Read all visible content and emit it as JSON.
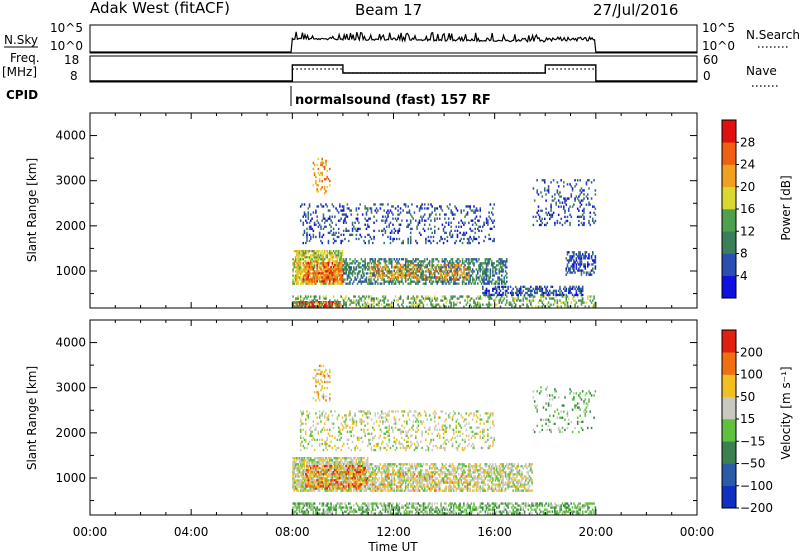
{
  "header": {
    "site": "Adak West (fitACF)",
    "beam": "Beam 17",
    "date": "27/Jul/2016"
  },
  "panels": {
    "nsky": {
      "label": "N.Sky",
      "ticks_left": [
        "10^5",
        "10^0"
      ],
      "ticks_right": [
        "10^5",
        "10^0"
      ],
      "right_label": "N.Search"
    },
    "freq": {
      "label_top": "Freq.",
      "label_bottom": "[MHz]",
      "ticks_left": [
        "18",
        "8"
      ],
      "ticks_right": [
        "60",
        "0"
      ],
      "right_label": "Nave"
    },
    "cpid": {
      "label": "CPID",
      "text": "normalsound (fast) 157 RF"
    }
  },
  "chart_data": [
    {
      "type": "heatmap",
      "name": "power",
      "ylabel": "Slant Range [km]",
      "xlabel": "",
      "x_range_hours": [
        0,
        24
      ],
      "ylim": [
        180,
        4500
      ],
      "yticks": [
        "1000",
        "2000",
        "3000",
        "4000"
      ],
      "colorbar": {
        "label": "Power [dB]",
        "ticks": [
          "4",
          "8",
          "12",
          "16",
          "20",
          "24",
          "28"
        ],
        "colors": [
          "#1010e0",
          "#2a4fb0",
          "#3a7e5a",
          "#4fa04c",
          "#d8d830",
          "#f0a020",
          "#f06010",
          "#e01010"
        ]
      },
      "regions": [
        {
          "t0": 8.0,
          "t1": 9.9,
          "r0": 200,
          "r1": 330,
          "level": 7,
          "density": 0.8
        },
        {
          "t0": 8.0,
          "t1": 20.0,
          "r0": 190,
          "r1": 420,
          "level": 3,
          "density": 0.35
        },
        {
          "t0": 8.0,
          "t1": 10.0,
          "r0": 700,
          "r1": 1450,
          "level": 4,
          "density": 0.7
        },
        {
          "t0": 8.4,
          "t1": 10.0,
          "r0": 750,
          "r1": 1200,
          "level": 6,
          "density": 0.55
        },
        {
          "t0": 10.0,
          "t1": 16.5,
          "r0": 700,
          "r1": 1250,
          "level": 2,
          "density": 0.5
        },
        {
          "t0": 11.0,
          "t1": 15.0,
          "r0": 800,
          "r1": 1150,
          "level": 5,
          "density": 0.35
        },
        {
          "t0": 15.5,
          "t1": 19.5,
          "r0": 450,
          "r1": 650,
          "level": 1,
          "density": 0.5
        },
        {
          "t0": 8.3,
          "t1": 16.0,
          "r0": 1600,
          "r1": 2500,
          "level": 1,
          "density": 0.18
        },
        {
          "t0": 18.8,
          "t1": 20.0,
          "r0": 900,
          "r1": 1400,
          "level": 1,
          "density": 0.45
        },
        {
          "t0": 8.8,
          "t1": 9.5,
          "r0": 2700,
          "r1": 3500,
          "level": 5,
          "density": 0.2
        },
        {
          "t0": 17.5,
          "t1": 20.0,
          "r0": 2000,
          "r1": 3000,
          "level": 1,
          "density": 0.15
        }
      ]
    },
    {
      "type": "heatmap",
      "name": "velocity",
      "ylabel": "Slant Range [km]",
      "xlabel": "Time UT",
      "x_range_hours": [
        0,
        24
      ],
      "xticks": [
        "00:00",
        "04:00",
        "08:00",
        "12:00",
        "16:00",
        "20:00",
        "00:00"
      ],
      "ylim": [
        180,
        4500
      ],
      "yticks": [
        "1000",
        "2000",
        "3000",
        "4000"
      ],
      "colorbar": {
        "label": "Velocity [m s⁻¹]",
        "ticks": [
          "200",
          "100",
          "50",
          "15",
          "−15",
          "−50",
          "−100",
          "−200"
        ],
        "colors": [
          "#1030c0",
          "#2a5aa8",
          "#3a8050",
          "#60c040",
          "#c8c8c0",
          "#f0c020",
          "#f07010",
          "#e02010"
        ]
      },
      "regions": [
        {
          "t0": 8.0,
          "t1": 11.0,
          "r0": 700,
          "r1": 1450,
          "level": 4,
          "density": 0.75
        },
        {
          "t0": 8.5,
          "t1": 11.0,
          "r0": 750,
          "r1": 1250,
          "level": 6,
          "density": 0.35
        },
        {
          "t0": 11.0,
          "t1": 17.5,
          "r0": 700,
          "r1": 1300,
          "level": 4,
          "density": 0.55
        },
        {
          "t0": 11.0,
          "t1": 15.0,
          "r0": 700,
          "r1": 1100,
          "level": 5,
          "density": 0.2
        },
        {
          "t0": 8.0,
          "t1": 20.0,
          "r0": 190,
          "r1": 420,
          "level": 3,
          "density": 0.5
        },
        {
          "t0": 8.3,
          "t1": 16.0,
          "r0": 1600,
          "r1": 2500,
          "level": 4,
          "density": 0.2
        },
        {
          "t0": 8.8,
          "t1": 9.5,
          "r0": 2700,
          "r1": 3500,
          "level": 5,
          "density": 0.2
        },
        {
          "t0": 17.5,
          "t1": 20.0,
          "r0": 2000,
          "r1": 3000,
          "level": 3,
          "density": 0.12
        }
      ]
    }
  ]
}
